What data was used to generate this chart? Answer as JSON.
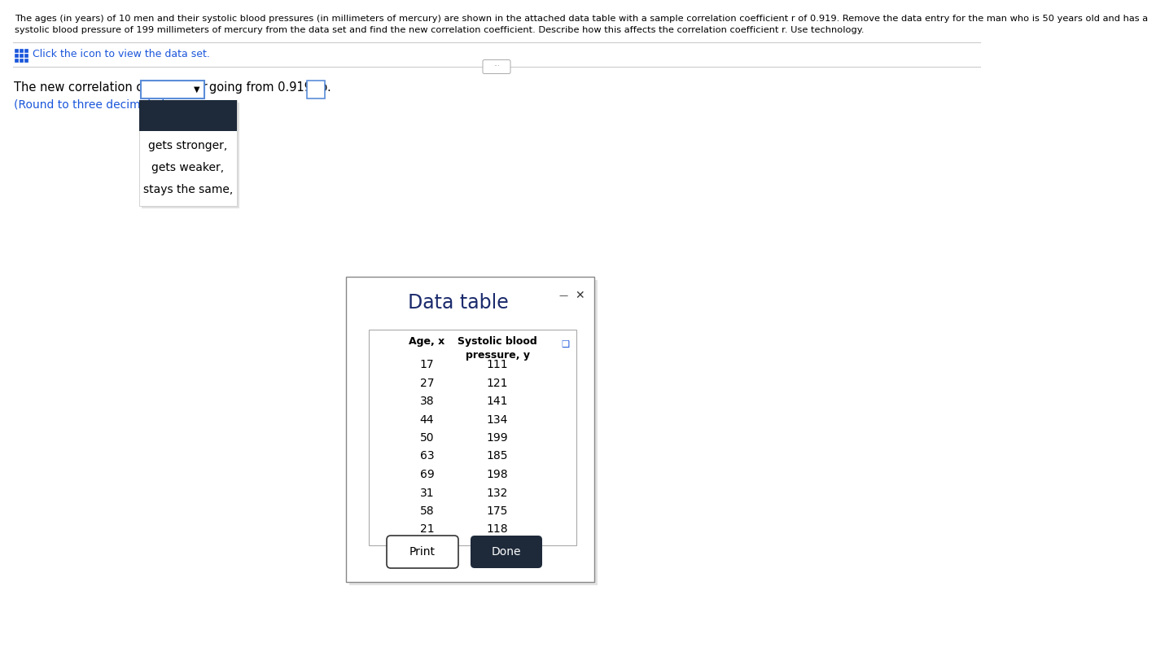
{
  "title_text1": "The ages (in years) of 10 men and their systolic blood pressures (in millimeters of mercury) are shown in the attached data table with a sample correlation coefficient r of 0.919. Remove the data entry for the man who is 50 years old and has a",
  "title_text2": "systolic blood pressure of 199 millimeters of mercury from the data set and find the new correlation coefficient. Describe how this affects the correlation coefficient r. Use technology.",
  "click_text": "Click the icon to view the data set.",
  "line1_text": "The new correlation coefficient r",
  "line2_text": "(Round to three decimal places a",
  "going_text": "going from 0.919 to",
  "dropdown_options": [
    "gets stronger,",
    "gets weaker,",
    "stays the same,"
  ],
  "dialog_title": "Data table",
  "col1_header": "Age, x",
  "col2_header": "Systolic blood\npressure, y",
  "ages": [
    17,
    27,
    38,
    44,
    50,
    63,
    69,
    31,
    58,
    21
  ],
  "pressures": [
    111,
    121,
    141,
    134,
    199,
    185,
    198,
    132,
    175,
    118
  ],
  "print_btn": "Print",
  "done_btn": "Done",
  "bg_color": "#ffffff",
  "text_color": "#000000",
  "blue_text_color": "#1a56db",
  "dialog_bg": "#ffffff",
  "dropdown_bg": "#1e2a3a",
  "done_btn_color": "#1e2a3a",
  "done_btn_text": "#ffffff",
  "input_box_border": "#5b8dd9",
  "separator_color": "#cccccc"
}
